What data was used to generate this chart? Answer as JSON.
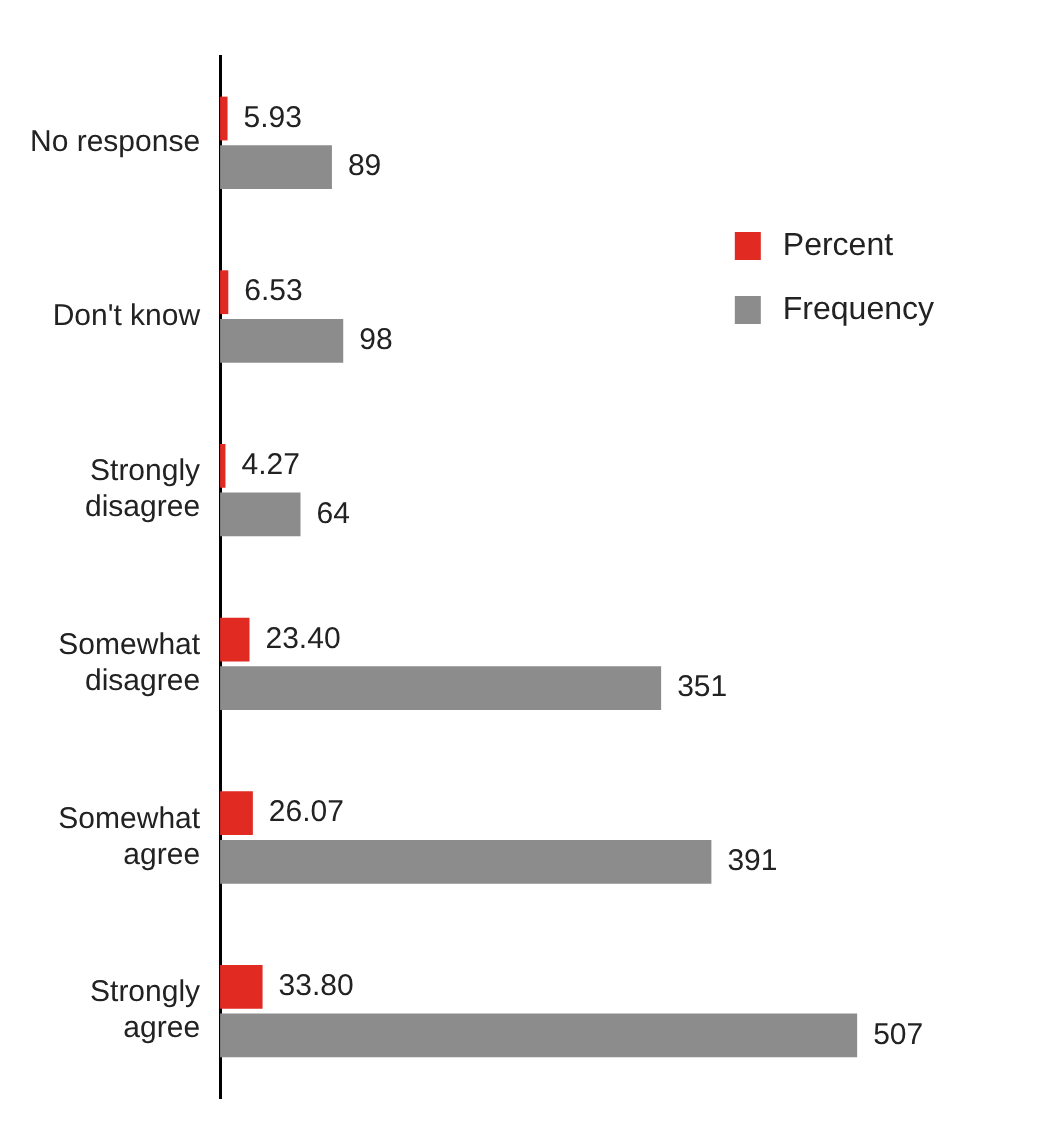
{
  "chart_data": {
    "type": "bar",
    "orientation": "horizontal",
    "categories": [
      "No response",
      "Don't know",
      "Strongly disagree",
      "Somewhat disagree",
      "Somewhat agree",
      "Strongly agree"
    ],
    "series": [
      {
        "name": "Percent",
        "color": "#e02a22",
        "values": [
          5.93,
          6.53,
          4.27,
          23.4,
          26.07,
          33.8
        ],
        "value_labels": [
          "5.93",
          "6.53",
          "4.27",
          "23.40",
          "26.07",
          "33.80"
        ]
      },
      {
        "name": "Frequency",
        "color": "#8c8c8c",
        "values": [
          89,
          98,
          64,
          351,
          391,
          507
        ],
        "value_labels": [
          "89",
          "98",
          "64",
          "351",
          "391",
          "507"
        ]
      }
    ],
    "legend": "top right"
  }
}
